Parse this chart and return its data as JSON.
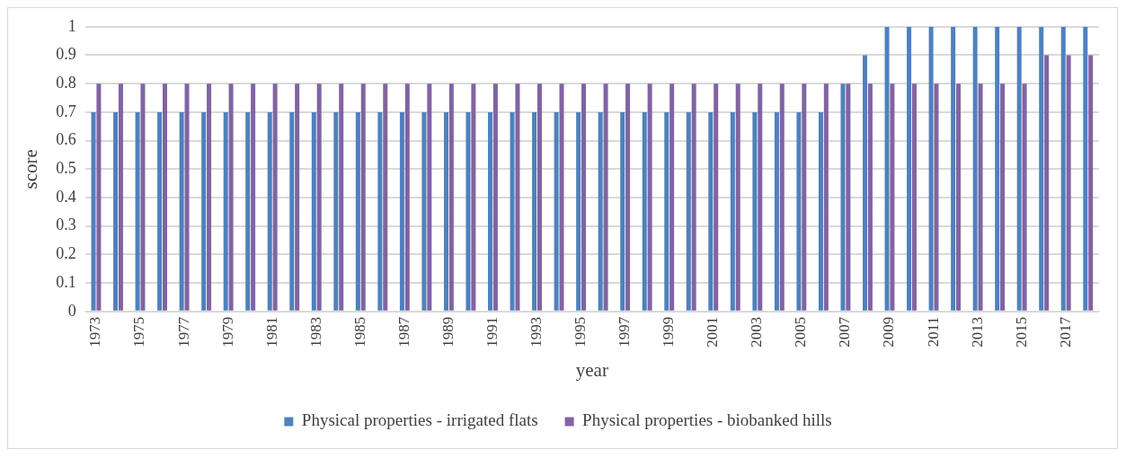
{
  "chart_data": {
    "type": "bar",
    "xlabel": "year",
    "ylabel": "score",
    "categories": [
      "1973",
      null,
      "1975",
      null,
      "1977",
      null,
      "1979",
      null,
      "1981",
      null,
      "1983",
      null,
      "1985",
      null,
      "1987",
      null,
      "1989",
      null,
      "1991",
      null,
      "1993",
      null,
      "1995",
      null,
      "1997",
      null,
      "1999",
      null,
      "2001",
      null,
      "2003",
      null,
      "2005",
      null,
      "2007",
      null,
      "2009",
      null,
      "2011",
      null,
      "2013",
      null,
      "2015",
      null,
      "2017",
      null
    ],
    "series": [
      {
        "name": "Physical properties - irrigated flats",
        "color": "#4f81bd",
        "values": [
          0.7,
          0.7,
          0.7,
          0.7,
          0.7,
          0.7,
          0.7,
          0.7,
          0.7,
          0.7,
          0.7,
          0.7,
          0.7,
          0.7,
          0.7,
          0.7,
          0.7,
          0.7,
          0.7,
          0.7,
          0.7,
          0.7,
          0.7,
          0.7,
          0.7,
          0.7,
          0.7,
          0.7,
          0.7,
          0.7,
          0.7,
          0.7,
          0.7,
          0.7,
          0.8,
          0.9,
          1,
          1,
          1,
          1,
          1,
          1,
          1,
          1,
          1,
          1
        ]
      },
      {
        "name": "Physical properties - biobanked hills",
        "color": "#8064a2",
        "values": [
          0.8,
          0.8,
          0.8,
          0.8,
          0.8,
          0.8,
          0.8,
          0.8,
          0.8,
          0.8,
          0.8,
          0.8,
          0.8,
          0.8,
          0.8,
          0.8,
          0.8,
          0.8,
          0.8,
          0.8,
          0.8,
          0.8,
          0.8,
          0.8,
          0.8,
          0.8,
          0.8,
          0.8,
          0.8,
          0.8,
          0.8,
          0.8,
          0.8,
          0.8,
          0.8,
          0.8,
          0.8,
          0.8,
          0.8,
          0.8,
          0.8,
          0.8,
          0.8,
          0.9,
          0.9,
          0.9
        ]
      }
    ],
    "ylim": [
      0,
      1
    ],
    "yticks": [
      0,
      0.1,
      0.2,
      0.3,
      0.4,
      0.5,
      0.6,
      0.7,
      0.8,
      0.9,
      1
    ],
    "grid": "y",
    "legend": "bottom"
  }
}
